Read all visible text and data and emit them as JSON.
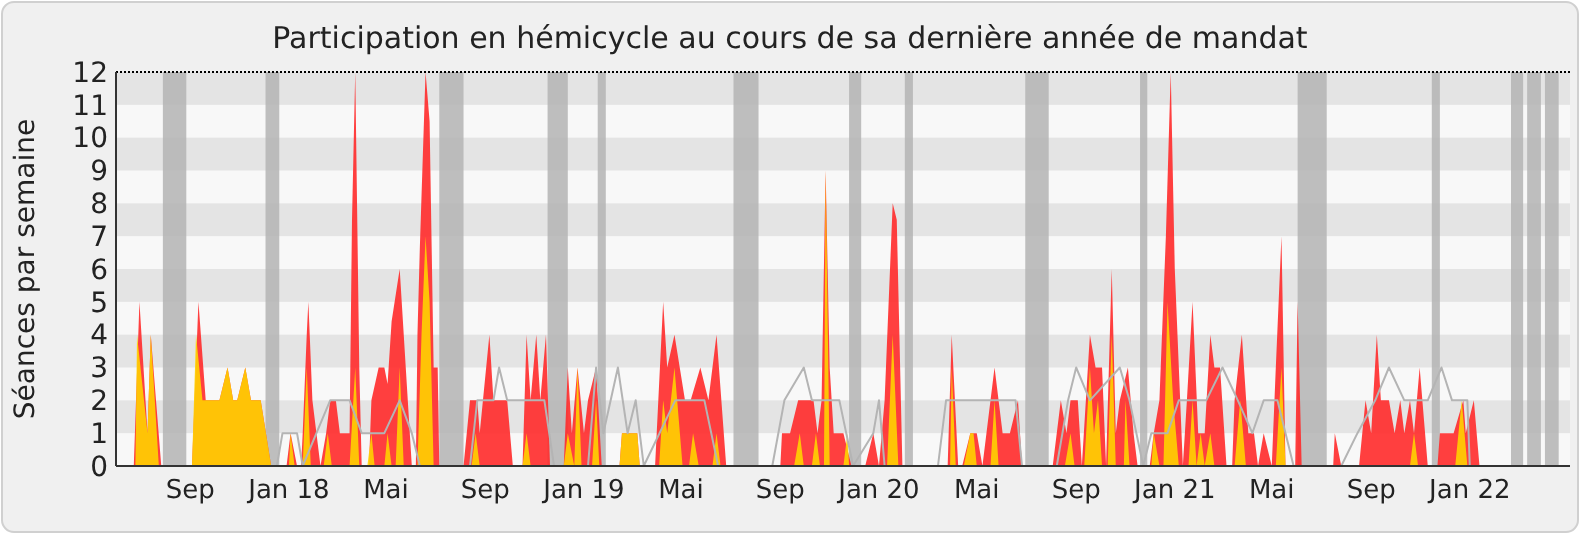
{
  "chart_data": {
    "type": "area",
    "title": "Participation en hémicycle au cours de sa dernière année de mandat",
    "ylabel": "Séances par semaine",
    "xlim": [
      "2017-06-01",
      "2022-05-05"
    ],
    "xticks": [
      {
        "value": "2017-09-01",
        "label": "Sep"
      },
      {
        "value": "2018-01-01",
        "label": "Jan 18"
      },
      {
        "value": "2018-05-01",
        "label": "Mai"
      },
      {
        "value": "2018-09-01",
        "label": "Sep"
      },
      {
        "value": "2019-01-01",
        "label": "Jan 19"
      },
      {
        "value": "2019-05-01",
        "label": "Mai"
      },
      {
        "value": "2019-09-01",
        "label": "Sep"
      },
      {
        "value": "2020-01-01",
        "label": "Jan 20"
      },
      {
        "value": "2020-05-01",
        "label": "Mai"
      },
      {
        "value": "2020-09-01",
        "label": "Sep"
      },
      {
        "value": "2021-01-01",
        "label": "Jan 21"
      },
      {
        "value": "2021-05-01",
        "label": "Mai"
      },
      {
        "value": "2021-09-01",
        "label": "Sep"
      },
      {
        "value": "2022-01-01",
        "label": "Jan 22"
      }
    ],
    "ylim": [
      0,
      12
    ],
    "yticks": [
      0,
      1,
      2,
      3,
      4,
      5,
      6,
      7,
      8,
      9,
      10,
      11,
      12
    ],
    "bands": [
      {
        "axis": "x",
        "from": "2017-07-29",
        "to": "2017-08-27",
        "color": "#b4b4b4"
      },
      {
        "axis": "x",
        "from": "2017-12-03",
        "to": "2017-12-20",
        "color": "#b4b4b4"
      },
      {
        "axis": "x",
        "from": "2018-07-06",
        "to": "2018-08-05",
        "color": "#b4b4b4"
      },
      {
        "axis": "x",
        "from": "2018-11-17",
        "to": "2018-12-12",
        "color": "#b4b4b4"
      },
      {
        "axis": "x",
        "from": "2019-01-18",
        "to": "2019-01-28",
        "color": "#b4b4b4"
      },
      {
        "axis": "x",
        "from": "2019-07-05",
        "to": "2019-08-05",
        "color": "#b4b4b4"
      },
      {
        "axis": "x",
        "from": "2019-11-25",
        "to": "2019-12-10",
        "color": "#b4b4b4"
      },
      {
        "axis": "x",
        "from": "2020-02-02",
        "to": "2020-02-12",
        "color": "#b4b4b4"
      },
      {
        "axis": "x",
        "from": "2020-06-30",
        "to": "2020-07-29",
        "color": "#b4b4b4"
      },
      {
        "axis": "x",
        "from": "2020-11-19",
        "to": "2020-11-28",
        "color": "#b4b4b4"
      },
      {
        "axis": "x",
        "from": "2021-06-02",
        "to": "2021-07-08",
        "color": "#b4b4b4"
      },
      {
        "axis": "x",
        "from": "2021-11-15",
        "to": "2021-11-25",
        "color": "#b4b4b4"
      },
      {
        "axis": "x",
        "from": "2022-02-21",
        "to": "2022-03-08",
        "color": "#b4b4b4"
      },
      {
        "axis": "x",
        "from": "2022-03-13",
        "to": "2022-03-30",
        "color": "#b4b4b4"
      },
      {
        "axis": "x",
        "from": "2022-04-04",
        "to": "2022-04-21",
        "color": "#b4b4b4"
      }
    ],
    "series": [
      {
        "color": "#ff2a2a",
        "x": [
          "2017-06-23",
          "2017-06-30",
          "2017-07-10",
          "2017-07-14",
          "2017-07-27",
          "2017-09-03",
          "2017-09-11",
          "2017-09-20",
          "2017-10-07",
          "2017-10-17",
          "2017-10-24",
          "2017-10-29",
          "2017-11-08",
          "2017-11-15",
          "2017-11-27",
          "2017-12-10",
          "2017-12-29",
          "2018-01-03",
          "2018-01-11",
          "2018-01-16",
          "2018-01-18",
          "2018-01-23",
          "2018-01-25",
          "2018-01-30",
          "2018-02-04",
          "2018-02-09",
          "2018-02-16",
          "2018-02-21",
          "2018-02-28",
          "2018-03-05",
          "2018-03-17",
          "2018-03-20",
          "2018-03-24",
          "2018-03-29",
          "2018-04-01",
          "2018-04-10",
          "2018-04-13",
          "2018-04-22",
          "2018-04-29",
          "2018-05-03",
          "2018-05-08",
          "2018-05-18",
          "2018-05-28",
          "2018-06-02",
          "2018-06-07",
          "2018-06-09",
          "2018-06-12",
          "2018-06-19",
          "2018-06-24",
          "2018-06-29",
          "2018-07-04",
          "2018-07-06",
          "2018-08-05",
          "2018-08-13",
          "2018-08-22",
          "2018-08-25",
          "2018-09-06",
          "2018-09-11",
          "2018-09-18",
          "2018-09-28",
          "2018-10-05",
          "2018-10-17",
          "2018-10-22",
          "2018-10-27",
          "2018-11-03",
          "2018-11-08",
          "2018-11-15",
          "2018-11-20",
          "2018-12-07",
          "2018-12-12",
          "2018-12-17",
          "2018-12-24",
          "2019-01-01",
          "2019-01-06",
          "2019-01-16",
          "2019-01-23",
          "2019-02-14",
          "2019-02-17",
          "2019-03-08",
          "2019-03-11",
          "2019-03-30",
          "2019-04-09",
          "2019-04-14",
          "2019-04-23",
          "2019-05-06",
          "2019-05-13",
          "2019-05-25",
          "2019-06-04",
          "2019-06-14",
          "2019-06-26",
          "2019-09-01",
          "2019-09-03",
          "2019-09-13",
          "2019-09-23",
          "2019-09-30",
          "2019-10-12",
          "2019-10-17",
          "2019-10-22",
          "2019-10-27",
          "2019-11-01",
          "2019-11-06",
          "2019-11-18",
          "2019-11-28",
          "2019-12-15",
          "2019-12-25",
          "2020-01-01",
          "2020-01-08",
          "2020-01-18",
          "2020-01-23",
          "2020-01-30",
          "2020-03-26",
          "2020-03-31",
          "2020-04-08",
          "2020-04-13",
          "2020-04-23",
          "2020-05-01",
          "2020-05-08",
          "2020-05-13",
          "2020-05-23",
          "2020-06-02",
          "2020-06-11",
          "2020-06-21",
          "2020-06-26",
          "2020-08-03",
          "2020-08-13",
          "2020-08-20",
          "2020-08-25",
          "2020-09-03",
          "2020-09-08",
          "2020-09-13",
          "2020-09-18",
          "2020-09-25",
          "2020-10-03",
          "2020-10-08",
          "2020-10-15",
          "2020-10-20",
          "2020-10-25",
          "2020-11-04",
          "2020-11-11",
          "2020-11-16",
          "2020-12-01",
          "2020-12-06",
          "2020-12-13",
          "2020-12-21",
          "2020-12-27",
          "2021-01-01",
          "2021-01-11",
          "2021-01-16",
          "2021-01-23",
          "2021-01-30",
          "2021-02-07",
          "2021-02-14",
          "2021-02-19",
          "2021-02-26",
          "2021-03-06",
          "2021-03-13",
          "2021-03-16",
          "2021-03-25",
          "2021-04-02",
          "2021-04-09",
          "2021-04-14",
          "2021-04-21",
          "2021-05-01",
          "2021-05-06",
          "2021-05-13",
          "2021-05-18",
          "2021-05-30",
          "2021-06-02",
          "2021-06-07",
          "2021-07-16",
          "2021-07-18",
          "2021-07-26",
          "2021-08-17",
          "2021-08-25",
          "2021-09-01",
          "2021-09-08",
          "2021-09-13",
          "2021-09-23",
          "2021-09-30",
          "2021-10-07",
          "2021-10-12",
          "2021-10-19",
          "2021-10-24",
          "2021-10-31",
          "2021-11-10",
          "2021-11-22",
          "2021-11-25",
          "2021-12-12",
          "2021-12-24",
          "2021-12-27",
          "2022-01-06",
          "2022-01-13"
        ],
        "values": [
          0,
          5,
          1,
          4,
          0,
          0,
          5,
          2,
          2,
          3,
          2,
          2,
          3,
          2,
          2,
          0,
          0,
          1,
          0,
          0,
          1,
          4,
          5,
          2,
          1,
          0,
          1,
          2,
          2,
          1,
          1,
          7.5,
          12,
          3,
          0,
          0,
          2,
          3,
          3,
          2.5,
          4.4,
          6,
          2,
          0,
          0,
          4,
          6.7,
          12,
          10.5,
          3,
          3,
          0,
          0,
          2,
          2,
          1,
          4,
          2,
          2,
          2,
          0,
          0,
          4,
          2,
          4,
          2,
          4,
          0,
          0,
          3,
          1,
          3,
          1,
          2,
          3,
          0,
          0,
          1,
          1,
          0,
          0,
          5,
          3,
          4,
          2,
          2,
          3,
          2,
          4,
          0,
          0,
          1,
          1,
          2,
          2,
          2,
          1,
          2,
          9,
          3,
          1,
          1,
          0,
          0,
          1,
          0,
          2,
          8,
          7.5,
          0,
          0,
          4,
          0,
          0,
          1,
          1,
          0,
          1,
          3,
          1,
          1,
          2,
          0,
          0,
          2,
          1,
          2,
          2,
          0,
          2,
          4,
          3,
          3,
          0,
          6,
          1,
          2,
          3,
          1,
          0,
          0,
          1,
          2,
          7,
          12,
          6,
          0,
          2,
          5,
          1,
          1,
          4,
          3,
          3,
          0,
          0,
          2,
          4,
          1,
          1,
          0,
          1,
          0,
          3,
          7,
          0,
          0,
          5,
          0,
          0,
          1,
          0,
          0,
          2,
          1,
          4,
          2,
          2,
          1,
          2,
          1,
          2,
          1,
          3,
          0,
          0,
          1,
          1,
          2,
          1,
          2,
          0
        ]
      },
      {
        "color": "#ffd200",
        "x": [
          "2017-06-25",
          "2017-06-27",
          "2017-07-10",
          "2017-07-14",
          "2017-07-24",
          "2017-09-03",
          "2017-09-08",
          "2017-09-16",
          "2017-10-07",
          "2017-10-17",
          "2017-10-24",
          "2017-10-29",
          "2017-11-08",
          "2017-11-15",
          "2017-11-27",
          "2017-12-10",
          "2018-01-01",
          "2018-01-03",
          "2018-01-08",
          "2018-01-18",
          "2018-01-23",
          "2018-01-28",
          "2018-02-13",
          "2018-02-18",
          "2018-02-23",
          "2018-03-17",
          "2018-03-24",
          "2018-03-29",
          "2018-04-08",
          "2018-04-13",
          "2018-04-17",
          "2018-04-29",
          "2018-05-03",
          "2018-05-08",
          "2018-05-13",
          "2018-05-18",
          "2018-05-23",
          "2018-06-09",
          "2018-06-14",
          "2018-06-19",
          "2018-06-24",
          "2018-06-29",
          "2018-08-15",
          "2018-08-20",
          "2018-08-25",
          "2018-10-17",
          "2018-10-22",
          "2018-10-27",
          "2018-12-07",
          "2018-12-12",
          "2018-12-20",
          "2018-12-24",
          "2018-12-29",
          "2019-01-11",
          "2019-01-16",
          "2019-01-20",
          "2019-02-14",
          "2019-02-17",
          "2019-03-08",
          "2019-03-11",
          "2019-04-04",
          "2019-04-09",
          "2019-04-14",
          "2019-04-23",
          "2019-05-03",
          "2019-05-11",
          "2019-05-16",
          "2019-05-23",
          "2019-06-09",
          "2019-06-14",
          "2019-06-19",
          "2019-09-18",
          "2019-09-25",
          "2019-09-30",
          "2019-10-10",
          "2019-10-15",
          "2019-10-20",
          "2019-10-25",
          "2019-10-27",
          "2019-11-01",
          "2019-11-18",
          "2019-11-23",
          "2019-11-25",
          "2020-01-11",
          "2020-01-18",
          "2020-01-25",
          "2020-03-29",
          "2020-03-31",
          "2020-04-05",
          "2020-04-15",
          "2020-04-23",
          "2020-04-27",
          "2020-05-01",
          "2020-05-18",
          "2020-05-23",
          "2020-05-28",
          "2020-08-18",
          "2020-08-25",
          "2020-08-30",
          "2020-09-11",
          "2020-09-18",
          "2020-09-23",
          "2020-09-28",
          "2020-10-03",
          "2020-10-10",
          "2020-10-15",
          "2020-10-20",
          "2020-10-30",
          "2020-11-01",
          "2020-11-06",
          "2020-12-03",
          "2020-12-06",
          "2020-12-13",
          "2020-12-18",
          "2020-12-23",
          "2020-12-30",
          "2021-01-06",
          "2021-01-18",
          "2021-01-23",
          "2021-01-28",
          "2021-02-02",
          "2021-02-07",
          "2021-02-14",
          "2021-02-19",
          "2021-03-16",
          "2021-03-23",
          "2021-03-30",
          "2021-05-06",
          "2021-05-13",
          "2021-05-18",
          "2021-10-19",
          "2021-10-24",
          "2021-10-29",
          "2021-12-14",
          "2021-12-22",
          "2021-12-29"
        ],
        "values": [
          0,
          4,
          1,
          4,
          0,
          0,
          4,
          2,
          2,
          3,
          2,
          2,
          3,
          2,
          2,
          0,
          0,
          1,
          0,
          0,
          3,
          0,
          0,
          1,
          0,
          0,
          3,
          0,
          0,
          1,
          0,
          0,
          1,
          0,
          0,
          3,
          0,
          0,
          4,
          7,
          5,
          0,
          0,
          1,
          0,
          0,
          1,
          0,
          0,
          1,
          0,
          3,
          0,
          0,
          2,
          0,
          0,
          1,
          1,
          0,
          0,
          2,
          1,
          3,
          0,
          0,
          1,
          0,
          0,
          1,
          0,
          0,
          1,
          0,
          0,
          1,
          0,
          0,
          9,
          0,
          0,
          1,
          0,
          0,
          4,
          0,
          0,
          3,
          0,
          0,
          1,
          1,
          0,
          0,
          2,
          0,
          0,
          1,
          0,
          0,
          3,
          1,
          2,
          0,
          0,
          4,
          0,
          0,
          2,
          0,
          0,
          1,
          0,
          0,
          5,
          2,
          0,
          0,
          2,
          0,
          1,
          0,
          1,
          0,
          0,
          2,
          0,
          0,
          3,
          0,
          0,
          1,
          0,
          0,
          2,
          0
        ]
      },
      {
        "type": "line",
        "color": "#b4b4b4",
        "x": [
          "2017-12-17",
          "2017-12-24",
          "2018-01-11",
          "2018-01-18",
          "2018-02-04",
          "2018-02-21",
          "2018-03-17",
          "2018-04-01",
          "2018-04-29",
          "2018-05-18",
          "2018-06-02",
          "2018-06-12",
          "2018-08-13",
          "2018-08-22",
          "2018-09-11",
          "2018-09-18",
          "2018-09-28",
          "2018-11-13",
          "2018-11-25",
          "2019-01-06",
          "2019-01-16",
          "2019-01-25",
          "2019-02-12",
          "2019-02-24",
          "2019-03-06",
          "2019-03-16",
          "2019-04-24",
          "2019-05-30",
          "2019-06-16",
          "2019-08-22",
          "2019-09-06",
          "2019-09-30",
          "2019-10-10",
          "2019-11-13",
          "2019-11-30",
          "2019-12-25",
          "2020-01-01",
          "2020-01-08",
          "2020-03-14",
          "2020-03-24",
          "2020-04-20",
          "2020-05-25",
          "2020-06-18",
          "2020-06-26",
          "2020-08-08",
          "2020-08-22",
          "2020-09-01",
          "2020-09-18",
          "2020-10-25",
          "2020-11-06",
          "2020-11-23",
          "2020-12-03",
          "2020-12-23",
          "2021-01-06",
          "2021-02-09",
          "2021-03-01",
          "2021-03-20",
          "2021-04-07",
          "2021-04-21",
          "2021-05-08",
          "2021-05-28",
          "2021-07-26",
          "2021-08-15",
          "2021-09-06",
          "2021-09-23",
          "2021-10-12",
          "2021-11-10",
          "2021-11-27",
          "2021-12-10",
          "2021-12-29",
          "2022-01-01"
        ],
        "values": [
          0,
          1,
          1,
          0,
          1,
          2,
          2,
          1,
          1,
          2,
          1,
          0,
          0,
          2,
          2,
          3,
          2,
          2,
          0,
          0,
          3,
          1,
          3,
          1,
          2,
          0,
          2,
          2,
          0,
          0,
          2,
          3,
          2,
          2,
          0,
          1,
          2,
          0,
          0,
          2,
          2,
          2,
          2,
          0,
          0,
          2,
          3,
          2,
          3,
          2,
          0,
          1,
          1,
          2,
          2,
          3,
          2,
          1,
          2,
          2,
          0,
          0,
          1,
          2,
          3,
          2,
          2,
          3,
          2,
          2,
          0
        ]
      }
    ]
  }
}
